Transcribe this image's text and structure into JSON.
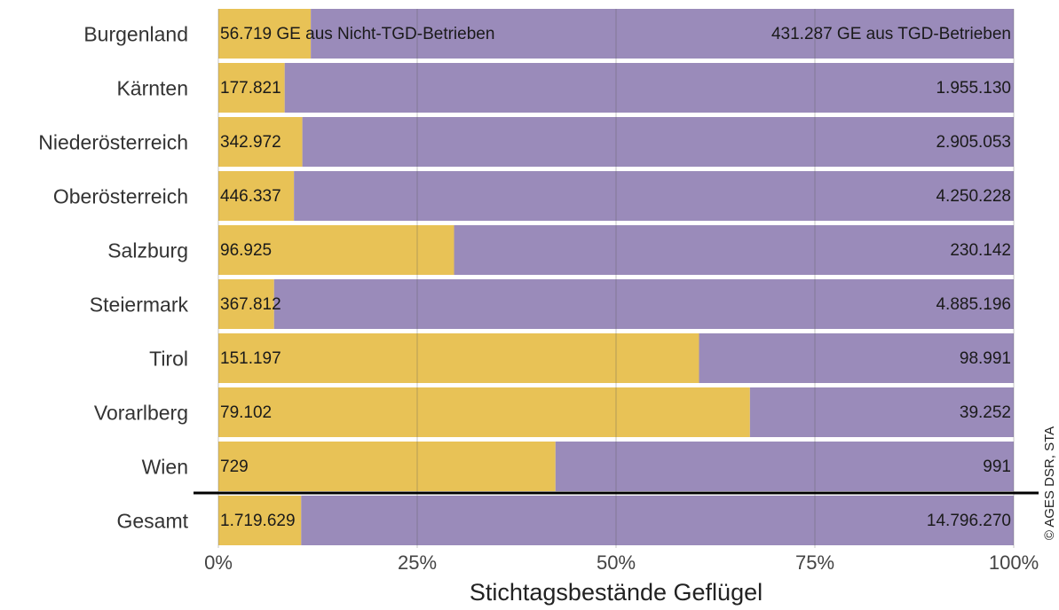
{
  "chart_data": {
    "type": "bar",
    "orientation": "horizontal",
    "stacking": "percent",
    "xlabel": "Stichtagsbestände Geflügel",
    "source": "© AGES DSR, STA",
    "categories": [
      "Burgenland",
      "Kärnten",
      "Niederösterreich",
      "Oberösterreich",
      "Salzburg",
      "Steiermark",
      "Tirol",
      "Vorarlberg",
      "Wien",
      "Gesamt"
    ],
    "series": [
      {
        "color": "#e8c256",
        "values": [
          56719,
          177821,
          342972,
          446337,
          96925,
          367812,
          151197,
          79102,
          729,
          1719629
        ],
        "value_labels": [
          "56.719 GE aus Nicht-TGD-Betrieben",
          "177.821",
          "342.972",
          "446.337",
          "96.925",
          "367.812",
          "151.197",
          "79.102",
          "729",
          "1.719.629"
        ]
      },
      {
        "color": "#9a8bba",
        "values": [
          431287,
          1955130,
          2905053,
          4250228,
          230142,
          4885196,
          98991,
          39252,
          991,
          14796270
        ],
        "value_labels": [
          "431.287 GE aus TGD-Betrieben",
          "1.955.130",
          "2.905.053",
          "4.250.228",
          "230.142",
          "4.885.196",
          "98.991",
          "39.252",
          "991",
          "14.796.270"
        ]
      }
    ],
    "xlim": [
      0,
      100
    ],
    "xticks": [
      {
        "value": 0,
        "label": "0%"
      },
      {
        "value": 25,
        "label": "25%"
      },
      {
        "value": 50,
        "label": "50%"
      },
      {
        "value": 75,
        "label": "75%"
      },
      {
        "value": 100,
        "label": "100%"
      }
    ],
    "grid": true
  }
}
